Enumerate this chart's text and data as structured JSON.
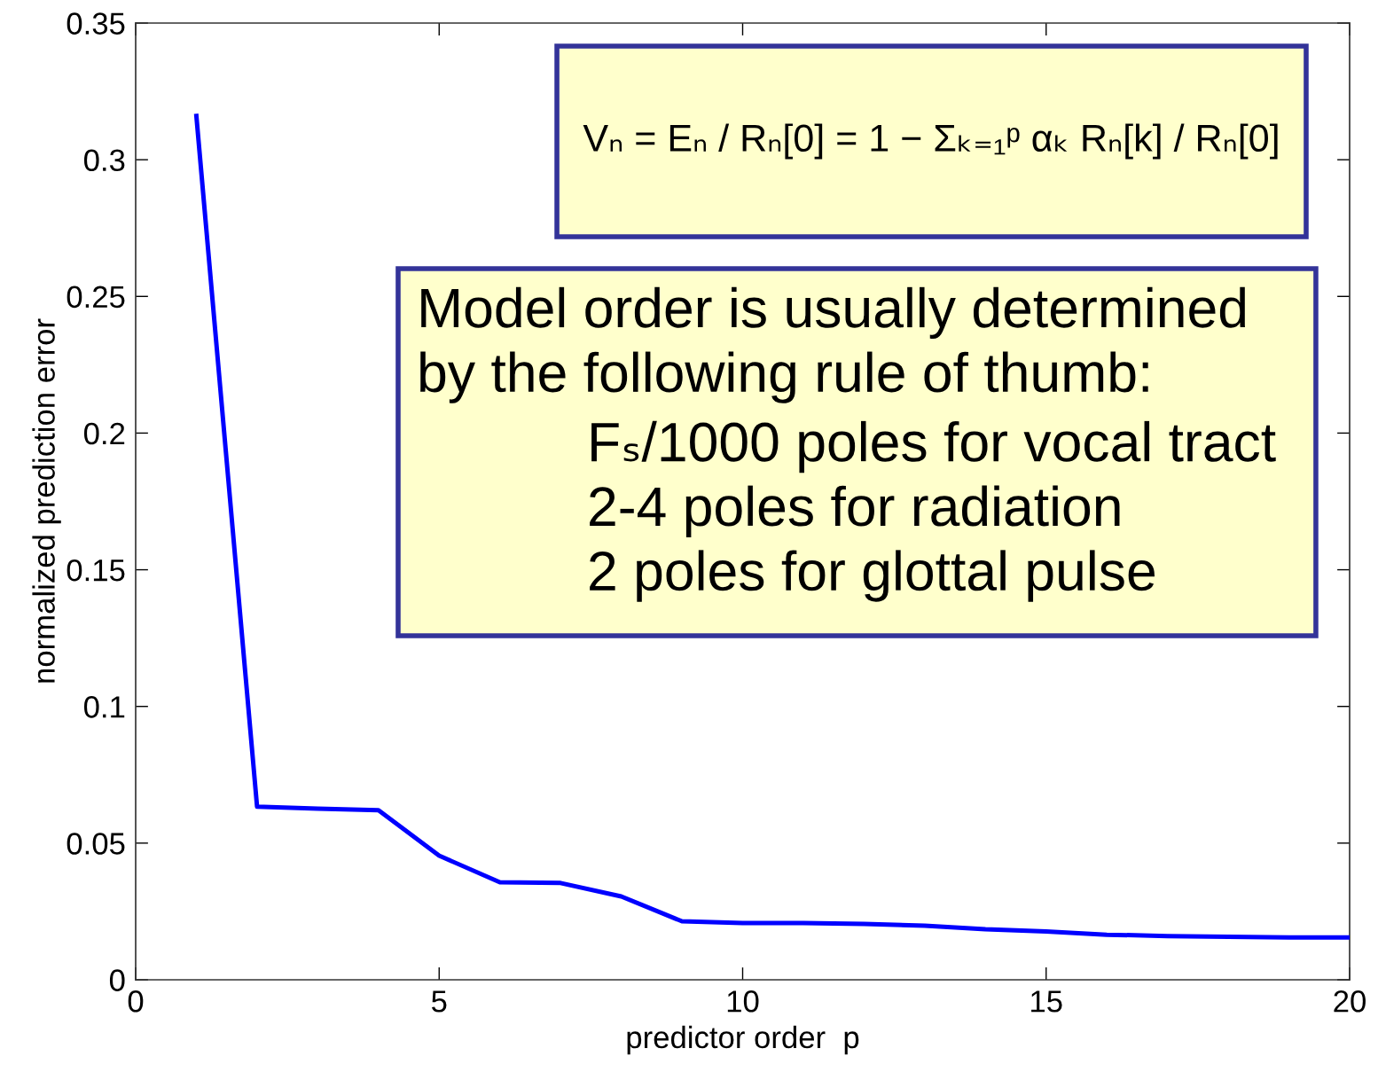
{
  "chart_data": {
    "type": "line",
    "xlabel": "predictor order  p",
    "ylabel": "normalized prediction error",
    "x": [
      1,
      2,
      3,
      4,
      5,
      6,
      7,
      8,
      9,
      10,
      11,
      12,
      13,
      14,
      15,
      16,
      17,
      18,
      19,
      20
    ],
    "series": [
      {
        "color": "#0000ff",
        "values": [
          0.316,
          0.0633,
          0.0626,
          0.062,
          0.0454,
          0.0357,
          0.0354,
          0.0305,
          0.0214,
          0.0208,
          0.0208,
          0.0204,
          0.0198,
          0.0185,
          0.0177,
          0.0165,
          0.016,
          0.0157,
          0.0155,
          0.0155
        ]
      }
    ],
    "xlim": [
      0,
      20
    ],
    "ylim": [
      0,
      0.35
    ],
    "xticks": [
      0,
      5,
      10,
      15,
      20
    ],
    "yticks": [
      0,
      0.05,
      0.1,
      0.15,
      0.2,
      0.25,
      0.3,
      0.35
    ],
    "line_style": "solid",
    "annotations": [
      "Vₙ = Eₙ / Rₙ[0] = 1 − Σₖ₌₁ᵖ αₖ Rₙ[k] / Rₙ[0]",
      "Model order is usually determined\nby the following rule of thumb:",
      "Fₛ/1000 poles for vocal tract\n2-4 poles for radiation\n2 poles for glottal pulse"
    ]
  }
}
